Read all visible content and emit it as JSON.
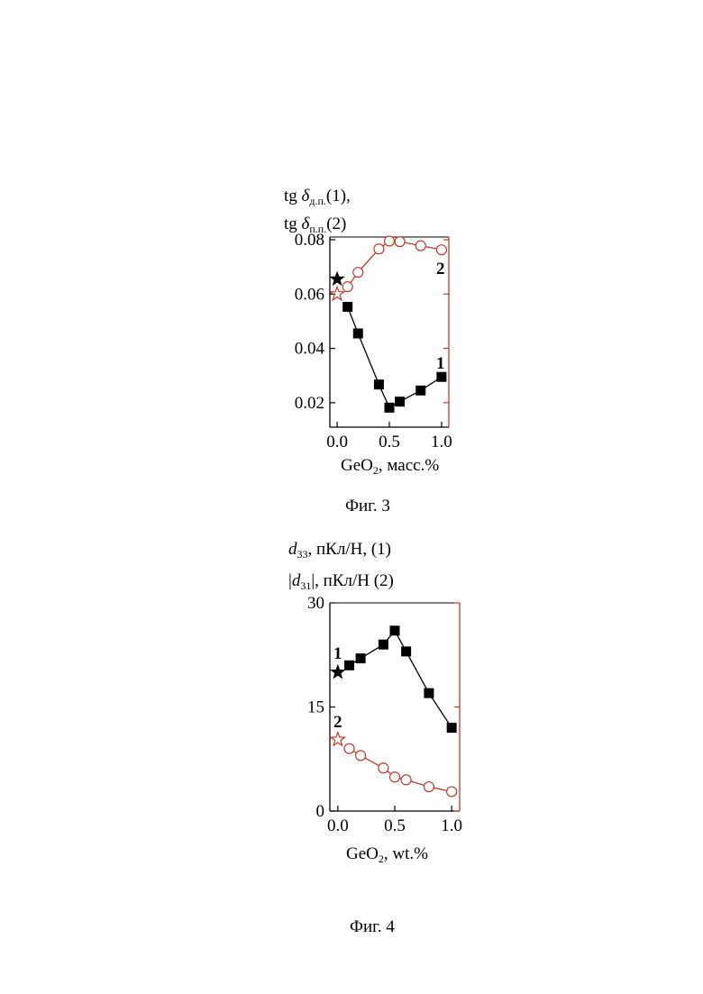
{
  "chart_data": [
    {
      "type": "line",
      "ylabel_line1": {
        "prefix": "tg ",
        "symbol": "δ",
        "sub": "д.п.",
        "suffix": "(1),"
      },
      "ylabel_line2": {
        "prefix": "tg ",
        "symbol": "δ",
        "sub": "п.п.",
        "suffix": "(2)"
      },
      "xlabel": {
        "main": "GeO",
        "sub": "2",
        "rest": ", масс.%"
      },
      "caption": "Фиг. 3",
      "xlim": [
        -0.07,
        1.07
      ],
      "ylim": [
        0.011,
        0.081
      ],
      "xticks": [
        "0.0",
        "0.5",
        "1.0"
      ],
      "xtick_values": [
        0.0,
        0.5,
        1.0
      ],
      "yticks": [
        "0.02",
        "0.04",
        "0.06",
        "0.08"
      ],
      "ytick_values": [
        0.02,
        0.04,
        0.06,
        0.08
      ],
      "series": [
        {
          "label": "1",
          "color": "#000000",
          "marker": "square-filled",
          "x": [
            0.1,
            0.2,
            0.4,
            0.5,
            0.6,
            0.8,
            1.0
          ],
          "y": [
            0.0553,
            0.0455,
            0.0267,
            0.0182,
            0.0204,
            0.0245,
            0.0295
          ]
        },
        {
          "label": "2",
          "color": "#c0392b",
          "marker": "circle-open",
          "x": [
            0.1,
            0.2,
            0.4,
            0.5,
            0.6,
            0.8,
            1.0
          ],
          "y": [
            0.0627,
            0.068,
            0.0766,
            0.0795,
            0.0793,
            0.0778,
            0.0763
          ]
        }
      ],
      "stars": [
        {
          "x": 0.0,
          "y": 0.0655,
          "color": "#000000",
          "filled": true
        },
        {
          "x": 0.0,
          "y": 0.06,
          "color": "#c0392b",
          "filled": false
        }
      ]
    },
    {
      "type": "line",
      "ylabel_line1": {
        "symbol": "d",
        "sub": "33",
        "suffix": ", пКл/Н, (1)"
      },
      "ylabel_line2": {
        "prefix": "|",
        "symbol": "d",
        "sub": "31",
        "suffix": "|, пКл/Н (2)"
      },
      "xlabel": {
        "main": "GeO",
        "sub": "2",
        "rest": ", wt.%"
      },
      "caption": "Фиг. 4",
      "xlim": [
        -0.07,
        1.07
      ],
      "ylim": [
        0,
        30
      ],
      "xticks": [
        "0.0",
        "0.5",
        "1.0"
      ],
      "xtick_values": [
        0.0,
        0.5,
        1.0
      ],
      "yticks": [
        "0",
        "15",
        "30"
      ],
      "ytick_values": [
        0,
        15,
        30
      ],
      "series": [
        {
          "label": "1",
          "color": "#000000",
          "marker": "square-filled",
          "x": [
            0.1,
            0.2,
            0.4,
            0.5,
            0.6,
            0.8,
            1.0
          ],
          "y": [
            21.0,
            22.0,
            24.0,
            26.0,
            23.0,
            17.0,
            12.0
          ]
        },
        {
          "label": "2",
          "color": "#c0392b",
          "marker": "circle-open",
          "x": [
            0.1,
            0.2,
            0.4,
            0.5,
            0.6,
            0.8,
            1.0
          ],
          "y": [
            9.0,
            8.0,
            6.2,
            4.9,
            4.5,
            3.5,
            2.8
          ]
        }
      ],
      "stars": [
        {
          "x": 0.0,
          "y": 20.0,
          "color": "#000000",
          "filled": true
        },
        {
          "x": 0.0,
          "y": 10.3,
          "color": "#c0392b",
          "filled": false
        }
      ]
    }
  ]
}
